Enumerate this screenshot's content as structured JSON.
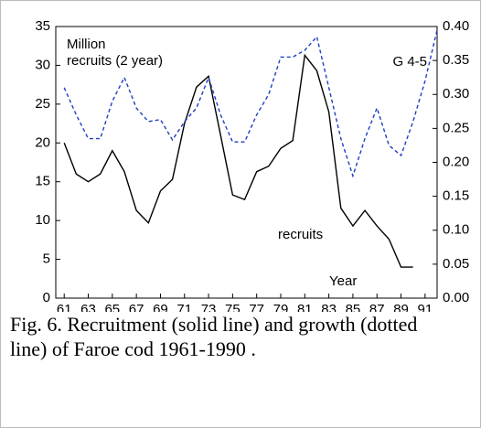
{
  "chart_data": {
    "type": "line",
    "caption": "Fig. 6. Recruitment (solid line) and growth (dotted line) of Faroe cod 1961-1990 .",
    "annotations": [
      "Million",
      "recruits (2 year)",
      "G 4-5",
      "recruits",
      "Year"
    ],
    "x": [
      61,
      62,
      63,
      64,
      65,
      66,
      67,
      68,
      69,
      70,
      71,
      72,
      73,
      74,
      75,
      76,
      77,
      78,
      79,
      80,
      81,
      82,
      83,
      84,
      85,
      86,
      87,
      88,
      89,
      90,
      91,
      92
    ],
    "series": [
      {
        "color": "#000000",
        "style": "solid",
        "values": [
          20,
          16,
          15,
          16,
          19,
          16.3,
          11.3,
          9.7,
          13.8,
          15.3,
          22.5,
          27.2,
          28.6,
          21,
          13.3,
          12.7,
          16.3,
          17,
          19.3,
          20.3,
          31.3,
          29.3,
          24,
          11.6,
          9.3,
          11.3,
          9.3,
          7.6,
          4,
          4,
          null,
          null
        ]
      },
      {
        "color": "#1f3fbf",
        "style": "dashed",
        "axis": "y2",
        "values": [
          0.31,
          0.27,
          0.235,
          0.235,
          0.29,
          0.325,
          0.28,
          0.26,
          0.263,
          0.233,
          0.26,
          0.28,
          0.325,
          0.27,
          0.23,
          0.23,
          0.27,
          0.3,
          0.355,
          0.355,
          0.365,
          0.385,
          0.31,
          0.235,
          0.18,
          0.235,
          0.28,
          0.225,
          0.21,
          0.26,
          0.32,
          0.395
        ]
      }
    ],
    "xlim": [
      60.3,
      92
    ],
    "xticks": [
      61,
      63,
      65,
      67,
      69,
      71,
      73,
      75,
      77,
      79,
      81,
      83,
      85,
      87,
      89,
      91
    ],
    "ylim": [
      0,
      35
    ],
    "yticks": [
      0,
      5,
      10,
      15,
      20,
      25,
      30,
      35
    ],
    "y2lim": [
      0,
      0.4
    ],
    "y2ticks": [
      {
        "value": 0,
        "label": "0.00"
      },
      {
        "value": 0.05,
        "label": "0.05"
      },
      {
        "value": 0.1,
        "label": "0.10"
      },
      {
        "value": 0.15,
        "label": "0.15"
      },
      {
        "value": 0.2,
        "label": "0.20"
      },
      {
        "value": 0.25,
        "label": "0.25"
      },
      {
        "value": 0.3,
        "label": "0.30"
      },
      {
        "value": 0.35,
        "label": "0.35"
      },
      {
        "value": 0.4,
        "label": "0.40"
      }
    ]
  }
}
